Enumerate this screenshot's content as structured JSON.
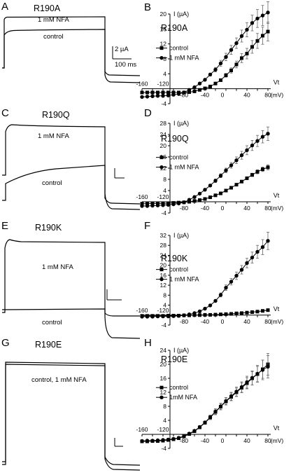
{
  "figure_panels": [
    {
      "letter": "A",
      "title": "R190A",
      "trace_nfa_label": "1 mM  NFA",
      "trace_control_label": "control",
      "scale_current": "2 µA",
      "scale_time": "100 ms"
    },
    {
      "letter": "C",
      "title": "R190Q",
      "trace_nfa_label": "1 mM NFA",
      "trace_control_label": "control"
    },
    {
      "letter": "E",
      "title": "R190K",
      "trace_nfa_label": "1 mM NFA",
      "trace_control_label": "control"
    },
    {
      "letter": "G",
      "title": "R190E",
      "trace_nfa_label": "control, 1 mM NFA"
    }
  ],
  "colors": {
    "ink": "#000000",
    "background": "#ffffff"
  },
  "chart_data": [
    {
      "letter": "B",
      "type": "line",
      "title": "R190A",
      "ylabel": "I (µA)",
      "xlabel": "Vt",
      "xunit": "(mV)",
      "x": [
        -160,
        -150,
        -140,
        -130,
        -120,
        -110,
        -100,
        -90,
        -80,
        -70,
        -60,
        -50,
        -40,
        -30,
        -20,
        -10,
        0,
        10,
        20,
        30,
        40,
        50,
        60,
        70,
        80
      ],
      "ylim": [
        -4,
        20
      ],
      "yticks": [
        -4,
        0,
        4,
        8,
        12,
        16,
        20
      ],
      "xtick_labels_left": [
        "-160",
        "-120"
      ],
      "xtick_labels_right": [
        "-80",
        "-40",
        "0",
        "40",
        "80"
      ],
      "legend": {
        "position": "center-left"
      },
      "series": [
        {
          "name": "control",
          "marker": "square",
          "values": [
            -1,
            -1,
            -1,
            -1,
            -1,
            -1,
            -1,
            -1,
            -1,
            -0.9,
            -0.7,
            -0.3,
            0.1,
            0.6,
            1.4,
            2.3,
            3.6,
            4.9,
            6.5,
            8.2,
            9.4,
            11.2,
            12.8,
            14.2,
            15.3
          ],
          "errors": [
            0,
            0,
            0,
            0,
            0,
            0,
            0,
            0,
            0,
            0,
            0,
            0,
            0,
            0,
            0,
            0.3,
            0.5,
            0.7,
            0.9,
            1.2,
            1.4,
            1.7,
            2,
            2.3,
            2.5
          ]
        },
        {
          "name": "1 mM NFA",
          "marker": "circle",
          "values": [
            -2.2,
            -2.1,
            -2,
            -1.9,
            -1.9,
            -1.8,
            -1.6,
            -1.4,
            -1,
            -0.3,
            0.4,
            1.4,
            2.4,
            3.8,
            5.1,
            6.8,
            8.5,
            10.4,
            12.2,
            14.1,
            15.8,
            17.6,
            18.8,
            19.6,
            20.4
          ],
          "errors": [
            0,
            0,
            0,
            0,
            0,
            0,
            0,
            0,
            0,
            0,
            0,
            0,
            0,
            0.4,
            0.6,
            0.8,
            1,
            1.2,
            1.4,
            1.6,
            1.9,
            2.1,
            2.4,
            2.7,
            2.9
          ]
        }
      ]
    },
    {
      "letter": "D",
      "type": "line",
      "title": "R190Q",
      "ylabel": "I (µA)",
      "xlabel": "Vt",
      "xunit": "(mV)",
      "x": [
        -160,
        -150,
        -140,
        -130,
        -120,
        -110,
        -100,
        -90,
        -80,
        -70,
        -60,
        -50,
        -40,
        -30,
        -20,
        -10,
        0,
        10,
        20,
        30,
        40,
        50,
        60,
        70,
        80
      ],
      "ylim": [
        -4,
        28
      ],
      "yticks": [
        -4,
        0,
        4,
        8,
        12,
        16,
        20,
        24,
        28
      ],
      "xtick_labels_left": [
        "-160",
        "-120"
      ],
      "xtick_labels_right": [
        "-80",
        "-40",
        "0",
        "40",
        "80"
      ],
      "legend": {
        "position": "center-left"
      },
      "series": [
        {
          "name": "control",
          "marker": "square",
          "values": [
            -0.7,
            -0.7,
            -0.6,
            -0.6,
            -0.6,
            -0.5,
            -0.4,
            -0.3,
            -0.2,
            0,
            0.3,
            0.6,
            1,
            1.6,
            2.3,
            3,
            4,
            5,
            6.1,
            7.2,
            8.4,
            9.6,
            10.7,
            11.6,
            12.3
          ],
          "errors": [
            0,
            0,
            0,
            0,
            0,
            0,
            0,
            0,
            0,
            0,
            0,
            0,
            0,
            0,
            0,
            0,
            0,
            0.2,
            0.3,
            0.4,
            0.5,
            0.6,
            0.7,
            0.8,
            0.9
          ]
        },
        {
          "name": "1 mM NFA",
          "marker": "circle",
          "values": [
            -1.5,
            -1.5,
            -1.4,
            -1.3,
            -1.2,
            -1.1,
            -0.9,
            -0.6,
            -0.2,
            0.7,
            1.7,
            2.9,
            4.3,
            5.8,
            7.5,
            9.3,
            11.2,
            13,
            14.8,
            16.6,
            18.4,
            20.1,
            21.7,
            23.2,
            24.3
          ],
          "errors": [
            0,
            0,
            0,
            0,
            0,
            0,
            0,
            0,
            0,
            0,
            0,
            0,
            0,
            0.4,
            0.6,
            0.7,
            0.8,
            1,
            1.2,
            1.4,
            1.6,
            1.8,
            2,
            2.2,
            2.4
          ]
        }
      ]
    },
    {
      "letter": "F",
      "type": "line",
      "title": "R190K",
      "ylabel": "I (µA)",
      "xlabel": "Vt",
      "xunit": "(mV)",
      "x": [
        -160,
        -150,
        -140,
        -130,
        -120,
        -110,
        -100,
        -90,
        -80,
        -70,
        -60,
        -50,
        -40,
        -30,
        -20,
        -10,
        0,
        10,
        20,
        30,
        40,
        50,
        60,
        70,
        80
      ],
      "ylim": [
        -4,
        32
      ],
      "yticks": [
        -4,
        0,
        4,
        8,
        12,
        16,
        20,
        24,
        28,
        32
      ],
      "xtick_labels_left": [
        "-160",
        "-120"
      ],
      "xtick_labels_right": [
        "-80",
        "-40",
        "0",
        "40",
        "80"
      ],
      "legend": {
        "position": "center-left"
      },
      "series": [
        {
          "name": "control",
          "marker": "square",
          "values": [
            -0.3,
            -0.3,
            -0.3,
            -0.3,
            -0.3,
            -0.2,
            -0.2,
            -0.2,
            -0.1,
            -0.1,
            0,
            0,
            0.1,
            0.1,
            0.2,
            0.3,
            0.4,
            0.5,
            0.7,
            0.8,
            1,
            1.2,
            1.4,
            1.7,
            2
          ],
          "errors": [
            0,
            0,
            0,
            0,
            0,
            0,
            0,
            0,
            0,
            0,
            0,
            0,
            0,
            0,
            0,
            0,
            0,
            0,
            0,
            0,
            0.1,
            0.1,
            0.2,
            0.2,
            0.3
          ]
        },
        {
          "name": "1 mM NFA",
          "marker": "circle",
          "values": [
            -0.6,
            -0.6,
            -0.6,
            -0.5,
            -0.5,
            -0.5,
            -0.4,
            -0.3,
            -0.1,
            0.3,
            0.8,
            1.5,
            2.6,
            3.9,
            5.7,
            8.1,
            11,
            13.4,
            15.8,
            18.2,
            20.9,
            23.1,
            25.4,
            27.3,
            29.8
          ],
          "errors": [
            0,
            0,
            0,
            0,
            0,
            0,
            0,
            0,
            0,
            0,
            0,
            0,
            0,
            0,
            0.5,
            0.8,
            1.1,
            1.3,
            1.5,
            1.7,
            1.9,
            2.2,
            2.6,
            3,
            3.5
          ]
        }
      ]
    },
    {
      "letter": "H",
      "type": "line",
      "title": "R190E",
      "ylabel": "I (µA)",
      "xlabel": "Vt",
      "xunit": "(mV)",
      "x": [
        -160,
        -150,
        -140,
        -130,
        -120,
        -110,
        -100,
        -90,
        -80,
        -70,
        -60,
        -50,
        -40,
        -30,
        -20,
        -10,
        0,
        10,
        20,
        30,
        40,
        50,
        60,
        70,
        80
      ],
      "ylim": [
        -4,
        24
      ],
      "yticks": [
        -4,
        0,
        4,
        8,
        12,
        16,
        20,
        24
      ],
      "xtick_labels_left": [
        "-160",
        "-120"
      ],
      "xtick_labels_right": [
        "-80",
        "-40",
        "0",
        "40",
        "80"
      ],
      "legend": {
        "position": "center-left"
      },
      "series": [
        {
          "name": "control",
          "marker": "square",
          "values": [
            -2,
            -2,
            -1.9,
            -1.9,
            -1.8,
            -1.6,
            -1.4,
            -1.1,
            -0.6,
            0.1,
            0.9,
            2,
            3.3,
            4.8,
            6.4,
            7.9,
            9.4,
            10.7,
            12,
            13.3,
            14.6,
            16,
            17.2,
            18.6,
            20
          ],
          "errors": [
            0,
            0,
            0,
            0,
            0,
            0,
            0,
            0,
            0,
            0,
            0,
            0,
            0.4,
            0.6,
            0.8,
            0.9,
            1,
            1.1,
            1.2,
            1.4,
            1.6,
            1.9,
            2.2,
            2.6,
            3.1
          ]
        },
        {
          "name": "1mM NFA",
          "marker": "circle",
          "values": [
            -1.9,
            -1.8,
            -1.8,
            -1.7,
            -1.6,
            -1.5,
            -1.3,
            -1,
            -0.5,
            0.2,
            1,
            2.1,
            3.4,
            4.9,
            6.5,
            8,
            9.5,
            10.9,
            12.2,
            13.5,
            14.9,
            16.1,
            17.3,
            18.4,
            19.3
          ],
          "errors": [
            0,
            0,
            0,
            0,
            0,
            0,
            0,
            0,
            0,
            0,
            0,
            0,
            0.4,
            0.6,
            0.8,
            0.9,
            1,
            1.1,
            1.3,
            1.5,
            1.7,
            2,
            2.4,
            2.8,
            3.2
          ]
        }
      ]
    }
  ]
}
